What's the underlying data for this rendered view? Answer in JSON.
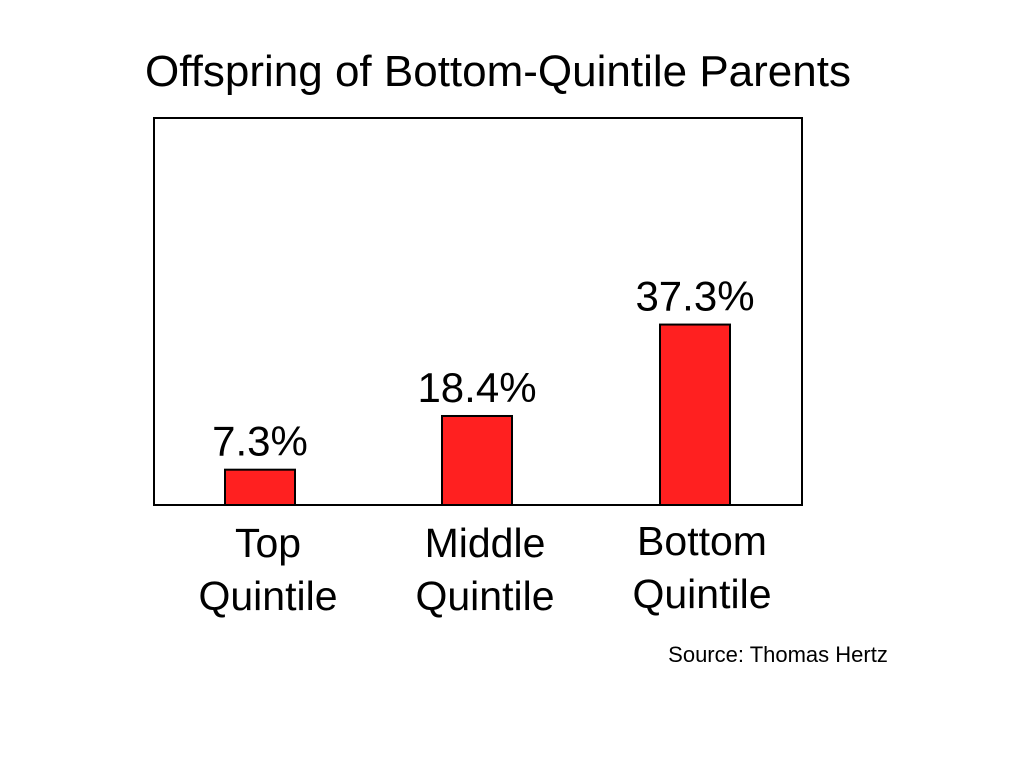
{
  "chart_data": {
    "type": "bar",
    "title": "Offspring of Bottom-Quintile Parents",
    "categories": [
      [
        "Top",
        "Quintile"
      ],
      [
        "Middle",
        "Quintile"
      ],
      [
        "Bottom",
        "Quintile"
      ]
    ],
    "values": [
      7.3,
      18.4,
      37.3
    ],
    "data_labels": [
      "7.3%",
      "18.4%",
      "37.3%"
    ],
    "xlabel": "",
    "ylabel": "",
    "ylim": [
      0,
      80
    ],
    "grid": false,
    "legend": "none",
    "bar_color": "#ff2020",
    "source": "Source: Thomas Hertz"
  }
}
